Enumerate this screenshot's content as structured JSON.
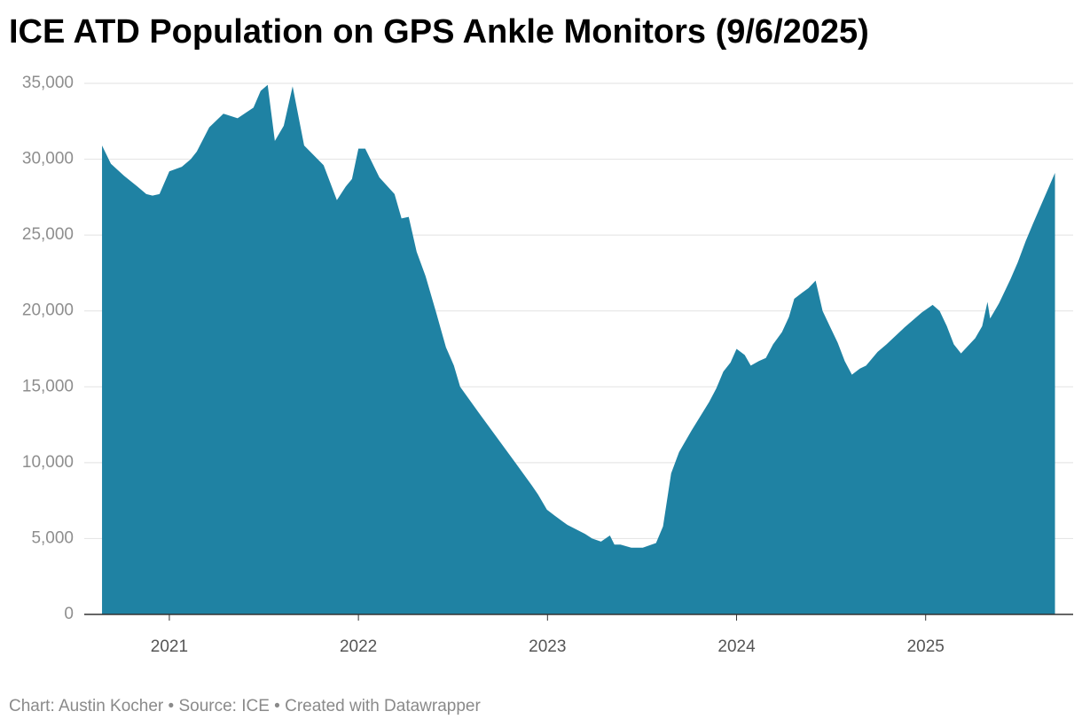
{
  "chart_data": {
    "type": "area",
    "title": "ICE ATD Population on GPS Ankle Monitors (9/6/2025)",
    "footer": "Chart: Austin Kocher • Source: ICE • Created with Datawrapper",
    "color": "#1f82a3",
    "grid": true,
    "xlim": [
      2020.55,
      2025.78
    ],
    "xticks": [
      2021,
      2022,
      2023,
      2024,
      2025
    ],
    "ylim": [
      0,
      35000
    ],
    "yticks": [
      0,
      {
        "value": 5000,
        "label": "5,000"
      },
      {
        "value": 10000,
        "label": "10,000"
      },
      {
        "value": 15000,
        "label": "15,000"
      },
      {
        "value": 20000,
        "label": "20,000"
      },
      {
        "value": 25000,
        "label": "25,000"
      },
      {
        "value": 30000,
        "label": "30,000"
      },
      {
        "value": 35000,
        "label": "35,000"
      }
    ],
    "x": [
      2020.644,
      2020.691,
      2020.761,
      2020.831,
      2020.878,
      2020.911,
      2020.948,
      2021.0,
      2021.066,
      2021.113,
      2021.145,
      2021.211,
      2021.286,
      2021.361,
      2021.445,
      2021.483,
      2021.52,
      2021.558,
      2021.605,
      2021.652,
      2021.713,
      2021.816,
      2021.886,
      2021.933,
      2021.966,
      2022.0,
      2022.036,
      2022.111,
      2022.191,
      2022.228,
      2022.266,
      2022.308,
      2022.355,
      2022.411,
      2022.463,
      2022.505,
      2022.538,
      2022.636,
      2022.73,
      2022.824,
      2022.917,
      2022.95,
      2022.997,
      2023.039,
      2023.105,
      2023.199,
      2023.236,
      2023.283,
      2023.33,
      2023.354,
      2023.386,
      2023.443,
      2023.504,
      2023.574,
      2023.611,
      2023.654,
      2023.696,
      2023.761,
      2023.855,
      2023.893,
      2023.93,
      2023.968,
      2024.0,
      2024.043,
      2024.075,
      2024.118,
      2024.155,
      2024.193,
      2024.24,
      2024.277,
      2024.305,
      2024.347,
      2024.38,
      2024.418,
      2024.455,
      2024.493,
      2024.535,
      2024.572,
      2024.61,
      2024.652,
      2024.685,
      2024.746,
      2024.793,
      2024.887,
      2024.98,
      2025.037,
      2025.074,
      2025.112,
      2025.149,
      2025.187,
      2025.224,
      2025.262,
      2025.299,
      2025.327,
      2025.341,
      2025.388,
      2025.449,
      2025.487,
      2025.529,
      2025.566,
      2025.604,
      2025.646,
      2025.684
    ],
    "values": [
      30900,
      29700,
      28900,
      28200,
      27700,
      27600,
      27700,
      29200,
      29500,
      30000,
      30500,
      32100,
      33000,
      32700,
      33400,
      34500,
      34900,
      31200,
      32200,
      34800,
      30900,
      29600,
      27300,
      28200,
      28700,
      30700,
      30700,
      28800,
      27700,
      26100,
      26200,
      23900,
      22300,
      19900,
      17600,
      16400,
      15000,
      13300,
      11700,
      10100,
      8500,
      7900,
      6900,
      6500,
      5900,
      5300,
      5000,
      4800,
      5200,
      4600,
      4600,
      4400,
      4400,
      4700,
      5800,
      9300,
      10700,
      12100,
      14000,
      14900,
      16000,
      16600,
      17500,
      17100,
      16400,
      16700,
      16900,
      17800,
      18600,
      19600,
      20800,
      21200,
      21500,
      22000,
      20000,
      19000,
      17900,
      16700,
      15800,
      16200,
      16400,
      17300,
      17800,
      18900,
      19900,
      20400,
      20000,
      19000,
      17800,
      17200,
      17700,
      18200,
      19000,
      20600,
      19500,
      20500,
      22100,
      23200,
      24600,
      25700,
      26800,
      28000,
      29100
    ]
  }
}
